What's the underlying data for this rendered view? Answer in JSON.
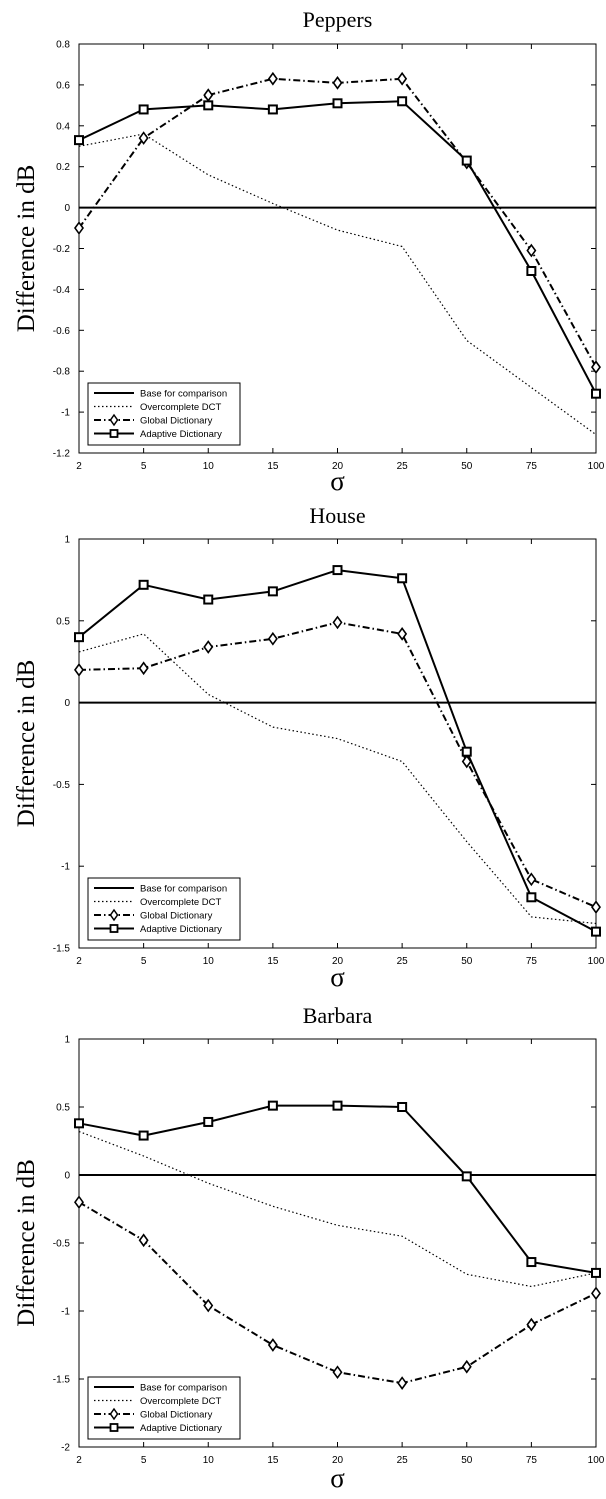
{
  "chart_data": [
    {
      "type": "line",
      "title": "Peppers",
      "xlabel": "σ",
      "ylabel": "Difference in dB",
      "categories": [
        "2",
        "5",
        "10",
        "15",
        "20",
        "25",
        "50",
        "75",
        "100"
      ],
      "ylim": [
        -1.2,
        0.8
      ],
      "yticks": [
        "0.8",
        "0.6",
        "0.4",
        "0.2",
        "0",
        "-0.2",
        "-0.4",
        "-0.6",
        "-0.8",
        "-1",
        "-1.2"
      ],
      "legend_position": "bottom-left",
      "grid": false,
      "series": [
        {
          "name": "Base for comparison",
          "style": "solid",
          "marker": "none",
          "values": [
            0,
            0,
            0,
            0,
            0,
            0,
            0,
            0,
            0
          ]
        },
        {
          "name": "Overcomplete DCT",
          "style": "dotted",
          "marker": "none",
          "values": [
            0.3,
            0.36,
            0.16,
            0.02,
            -0.11,
            -0.19,
            -0.65,
            -0.88,
            -1.11
          ]
        },
        {
          "name": "Global Dictionary",
          "style": "dashdot",
          "marker": "diamond",
          "values": [
            -0.1,
            0.34,
            0.55,
            0.63,
            0.61,
            0.63,
            0.22,
            -0.21,
            -0.78
          ]
        },
        {
          "name": "Adaptive Dictionary",
          "style": "solid",
          "marker": "square",
          "values": [
            0.33,
            0.48,
            0.5,
            0.48,
            0.51,
            0.52,
            0.23,
            -0.31,
            -0.91
          ]
        }
      ]
    },
    {
      "type": "line",
      "title": "House",
      "xlabel": "σ",
      "ylabel": "Difference in dB",
      "categories": [
        "2",
        "5",
        "10",
        "15",
        "20",
        "25",
        "50",
        "75",
        "100"
      ],
      "ylim": [
        -1.5,
        1.0
      ],
      "yticks": [
        "1",
        "0.5",
        "0",
        "-0.5",
        "-1",
        "-1.5"
      ],
      "legend_position": "bottom-left",
      "grid": false,
      "series": [
        {
          "name": "Base for comparison",
          "style": "solid",
          "marker": "none",
          "values": [
            0,
            0,
            0,
            0,
            0,
            0,
            0,
            0,
            0
          ]
        },
        {
          "name": "Overcomplete DCT",
          "style": "dotted",
          "marker": "none",
          "values": [
            0.31,
            0.42,
            0.05,
            -0.15,
            -0.22,
            -0.36,
            -0.85,
            -1.31,
            -1.35
          ]
        },
        {
          "name": "Global Dictionary",
          "style": "dashdot",
          "marker": "diamond",
          "values": [
            0.2,
            0.21,
            0.34,
            0.39,
            0.49,
            0.42,
            -0.36,
            -1.08,
            -1.25
          ]
        },
        {
          "name": "Adaptive Dictionary",
          "style": "solid",
          "marker": "square",
          "values": [
            0.4,
            0.72,
            0.63,
            0.68,
            0.81,
            0.76,
            -0.3,
            -1.19,
            -1.4
          ]
        }
      ]
    },
    {
      "type": "line",
      "title": "Barbara",
      "xlabel": "σ",
      "ylabel": "Difference in dB",
      "categories": [
        "2",
        "5",
        "10",
        "15",
        "20",
        "25",
        "50",
        "75",
        "100"
      ],
      "ylim": [
        -2.0,
        1.0
      ],
      "yticks": [
        "1",
        "0.5",
        "0",
        "-0.5",
        "-1",
        "-1.5",
        "-2"
      ],
      "legend_position": "bottom-left",
      "grid": false,
      "series": [
        {
          "name": "Base for comparison",
          "style": "solid",
          "marker": "none",
          "values": [
            0,
            0,
            0,
            0,
            0,
            0,
            0,
            0,
            0
          ]
        },
        {
          "name": "Overcomplete DCT",
          "style": "dotted",
          "marker": "none",
          "values": [
            0.32,
            0.14,
            -0.06,
            -0.23,
            -0.37,
            -0.45,
            -0.73,
            -0.82,
            -0.72
          ]
        },
        {
          "name": "Global Dictionary",
          "style": "dashdot",
          "marker": "diamond",
          "values": [
            -0.2,
            -0.48,
            -0.96,
            -1.25,
            -1.45,
            -1.53,
            -1.41,
            -1.1,
            -0.87
          ]
        },
        {
          "name": "Adaptive Dictionary",
          "style": "solid",
          "marker": "square",
          "values": [
            0.38,
            0.29,
            0.39,
            0.51,
            0.51,
            0.5,
            -0.01,
            -0.64,
            -0.72
          ]
        }
      ]
    }
  ]
}
